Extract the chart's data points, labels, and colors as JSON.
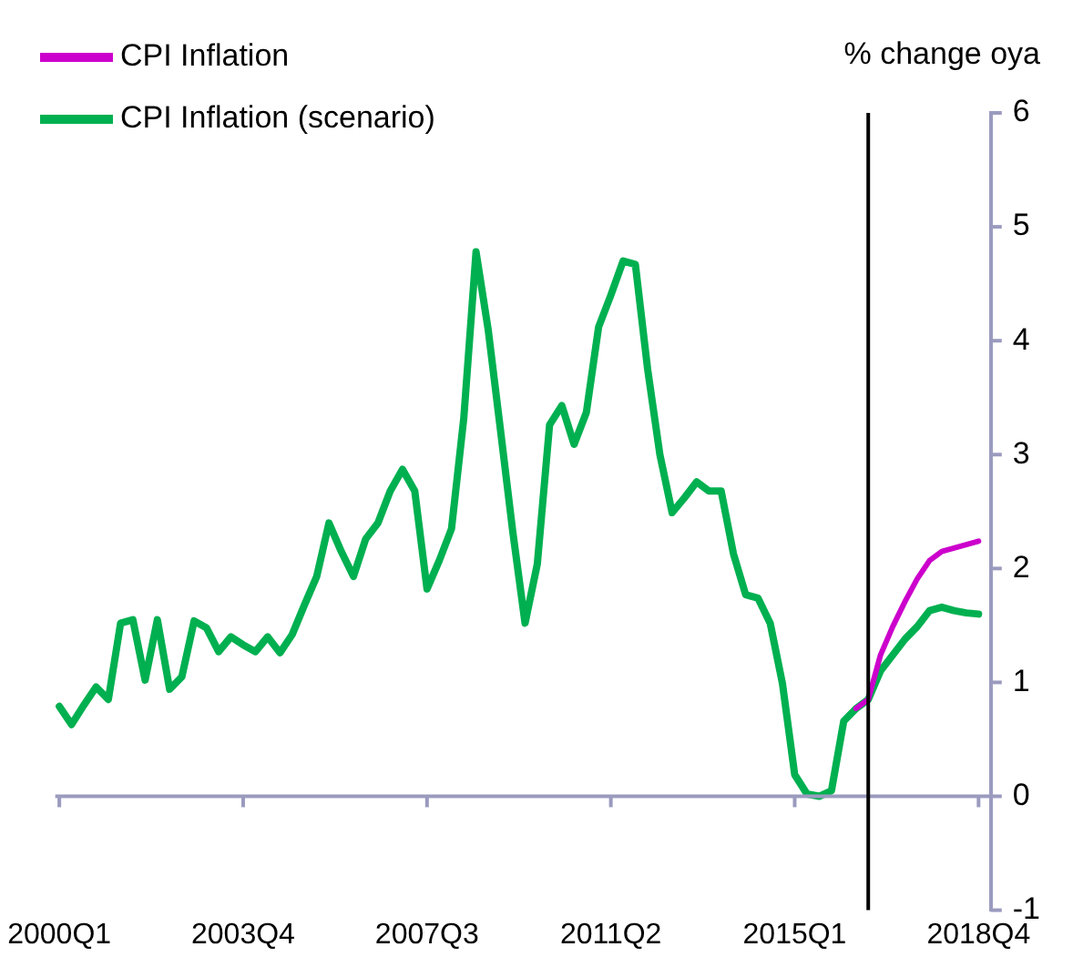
{
  "chart_data": {
    "type": "line",
    "ylabel": "% change oya",
    "x": [
      "2000-01",
      "2000-04",
      "2000-07",
      "2000-10",
      "2001-01",
      "2001-04",
      "2001-07",
      "2001-10",
      "2002-01",
      "2002-04",
      "2002-07",
      "2002-10",
      "2003-01",
      "2003-04",
      "2003-07",
      "2003-10",
      "2004-01",
      "2004-04",
      "2004-07",
      "2004-10",
      "2005-01",
      "2005-04",
      "2005-07",
      "2005-10",
      "2006-01",
      "2006-04",
      "2006-07",
      "2006-10",
      "2007-01",
      "2007-04",
      "2007-07",
      "2007-10",
      "2008-01",
      "2008-04",
      "2008-07",
      "2008-10",
      "2009-01",
      "2009-04",
      "2009-07",
      "2009-10",
      "2010-01",
      "2010-04",
      "2010-07",
      "2010-10",
      "2011-01",
      "2011-04",
      "2011-07",
      "2011-10",
      "2012-01",
      "2012-04",
      "2012-07",
      "2012-10",
      "2013-01",
      "2013-04",
      "2013-07",
      "2013-10",
      "2014-01",
      "2014-04",
      "2014-07",
      "2014-10",
      "2015-01",
      "2015-04",
      "2015-07",
      "2015-10",
      "2016-01",
      "2016-04",
      "2016-07",
      "2016-10",
      "2017-01",
      "2017-04",
      "2017-07",
      "2017-10",
      "2018-01",
      "2018-04",
      "2018-07",
      "2018-10"
    ],
    "series": [
      {
        "name": "CPI Inflation",
        "color": "#cc00cc",
        "values": [
          null,
          null,
          null,
          null,
          null,
          null,
          null,
          null,
          null,
          null,
          null,
          null,
          null,
          null,
          null,
          null,
          null,
          null,
          null,
          null,
          null,
          null,
          null,
          null,
          null,
          null,
          null,
          null,
          null,
          null,
          null,
          null,
          null,
          null,
          null,
          null,
          null,
          null,
          null,
          null,
          null,
          null,
          null,
          null,
          null,
          null,
          null,
          null,
          null,
          null,
          null,
          null,
          null,
          null,
          null,
          null,
          null,
          null,
          null,
          null,
          null,
          null,
          null,
          null,
          null,
          0.77,
          0.85,
          1.24,
          1.49,
          1.71,
          1.91,
          2.07,
          2.15,
          2.18,
          2.21,
          2.24
        ]
      },
      {
        "name": "CPI Inflation (scenario)",
        "color": "#00b050",
        "values": [
          0.79,
          0.63,
          0.8,
          0.96,
          0.85,
          1.52,
          1.55,
          1.02,
          1.55,
          0.94,
          1.05,
          1.54,
          1.48,
          1.27,
          1.4,
          1.33,
          1.27,
          1.4,
          1.26,
          1.42,
          1.68,
          1.93,
          2.4,
          2.15,
          1.93,
          2.26,
          2.4,
          2.68,
          2.87,
          2.68,
          1.82,
          2.07,
          2.35,
          3.32,
          4.78,
          4.09,
          3.21,
          2.32,
          1.52,
          2.04,
          3.26,
          3.43,
          3.09,
          3.37,
          4.12,
          4.4,
          4.7,
          4.67,
          3.75,
          3.0,
          2.49,
          2.62,
          2.76,
          2.68,
          2.68,
          2.13,
          1.77,
          1.74,
          1.52,
          0.99,
          0.19,
          0.02,
          0.0,
          0.05,
          0.66,
          0.77,
          0.85,
          1.1,
          1.24,
          1.38,
          1.49,
          1.63,
          1.66,
          1.63,
          1.61,
          1.6
        ]
      }
    ],
    "xlim": [
      "1999-12",
      "2019-01"
    ],
    "xticks": [
      {
        "value": "2000-01",
        "label": "2000Q1"
      },
      {
        "value": "2003-10",
        "label": "2003Q4"
      },
      {
        "value": "2007-07",
        "label": "2007Q3"
      },
      {
        "value": "2011-04",
        "label": "2011Q2"
      },
      {
        "value": "2015-01",
        "label": "2015Q1"
      },
      {
        "value": "2018-10",
        "label": "2018Q4"
      }
    ],
    "ylim": [
      -1,
      6
    ],
    "yticks": [
      -1,
      0,
      1,
      2,
      3,
      4,
      5,
      6
    ],
    "ref_lines": [
      {
        "axis": "y",
        "value": 0,
        "color": "#9b9bbf"
      },
      {
        "axis": "x",
        "value": "2016-07",
        "color": "#000000"
      }
    ],
    "grid": false,
    "legend": "top left",
    "marker": "none",
    "line_style": "solid"
  }
}
